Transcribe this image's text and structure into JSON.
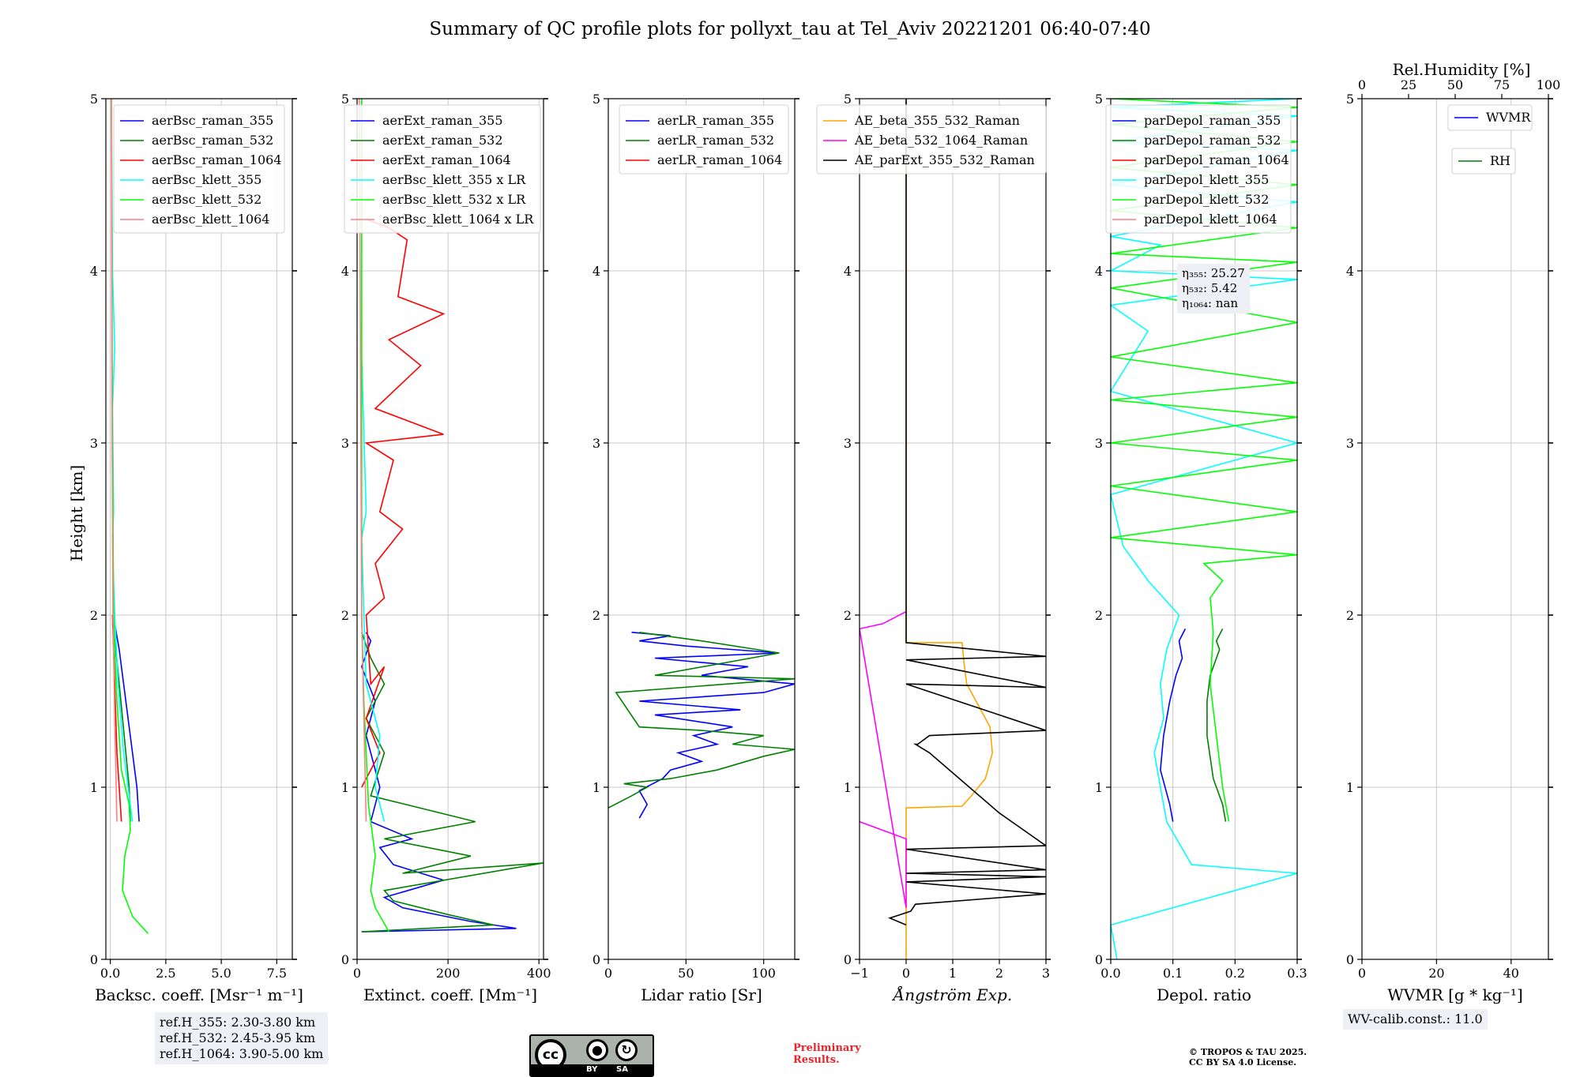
{
  "title": "Summary of QC profile plots for pollyxt_tau at Tel_Aviv 20221201 06:40-07:40",
  "ylabel": "Height [km]",
  "colors": {
    "blue": "#0000ff",
    "green": "#008000",
    "red": "#ff0000",
    "cyan": "#00ffff",
    "lime": "#00ff00",
    "pink": "#ff8080",
    "orange": "#ffa500",
    "magenta": "#ff00ff",
    "black": "#000000",
    "grid": "#c8c8c8"
  },
  "chart_data": [
    {
      "type": "line",
      "xlabel": "Backsc. coeff. [Msr⁻¹ m⁻¹]",
      "ylabel": "Height [km]",
      "xlim": [
        -0.2,
        8.2
      ],
      "ylim": [
        0,
        5
      ],
      "xticks": [
        0,
        2.5,
        5,
        7.5
      ],
      "xticklabels": [
        "0.0",
        "2.5",
        "5.0",
        "7.5"
      ],
      "yticks": [
        0,
        1,
        2,
        3,
        4,
        5
      ],
      "yticklabels": [
        "0",
        "1",
        "2",
        "3",
        "4",
        "5"
      ],
      "legend": [
        {
          "label": "aerBsc_raman_355",
          "color": "blue"
        },
        {
          "label": "aerBsc_raman_532",
          "color": "green"
        },
        {
          "label": "aerBsc_raman_1064",
          "color": "red"
        },
        {
          "label": "aerBsc_klett_355",
          "color": "cyan"
        },
        {
          "label": "aerBsc_klett_532",
          "color": "lime"
        },
        {
          "label": "aerBsc_klett_1064",
          "color": "pink"
        }
      ],
      "series": [
        {
          "name": "aerBsc_raman_355",
          "color": "blue",
          "x": [
            1.3,
            1.2,
            1.0,
            0.8,
            0.6,
            0.4,
            0.2
          ],
          "y": [
            0.8,
            1.0,
            1.2,
            1.4,
            1.6,
            1.8,
            1.95
          ]
        },
        {
          "name": "aerBsc_raman_532",
          "color": "green",
          "x": [
            0.9,
            0.85,
            0.7,
            0.55,
            0.4,
            0.25,
            0.1
          ],
          "y": [
            0.8,
            1.0,
            1.2,
            1.4,
            1.6,
            1.8,
            1.95
          ]
        },
        {
          "name": "aerBsc_raman_1064",
          "color": "red",
          "x": [
            0.5,
            0.4,
            0.3,
            0.25,
            0.2,
            0.15,
            0.1
          ],
          "y": [
            0.8,
            1.0,
            1.2,
            1.4,
            1.6,
            1.8,
            2.0
          ]
        },
        {
          "name": "aerBsc_klett_355",
          "color": "cyan",
          "x": [
            1.0,
            0.6,
            0.35,
            0.2,
            0.12,
            0.1,
            0.15,
            0.1,
            0.2,
            0.1,
            0.05
          ],
          "y": [
            0.8,
            1.2,
            1.6,
            2.0,
            2.3,
            2.45,
            2.6,
            3.2,
            3.55,
            4.0,
            5.0
          ]
        },
        {
          "name": "aerBsc_klett_532",
          "color": "lime",
          "x": [
            1.7,
            1.0,
            0.55,
            0.65,
            0.9,
            0.85,
            0.5,
            0.3,
            0.15,
            0.1,
            0.05
          ],
          "y": [
            0.15,
            0.25,
            0.4,
            0.6,
            0.75,
            0.9,
            1.1,
            1.5,
            2.0,
            3.0,
            5.0
          ]
        },
        {
          "name": "aerBsc_klett_1064",
          "color": "pink",
          "x": [
            0.3,
            0.2,
            0.12,
            0.08,
            0.05
          ],
          "y": [
            0.8,
            1.4,
            2.0,
            3.0,
            5.0
          ]
        }
      ],
      "annotation": [
        "ref.H_355: 2.30-3.80 km",
        "ref.H_532: 2.45-3.95 km",
        "ref.H_1064: 3.90-5.00 km"
      ]
    },
    {
      "type": "line",
      "xlabel": "Extinct. coeff. [Mm⁻¹]",
      "xlim": [
        0,
        410
      ],
      "ylim": [
        0,
        5
      ],
      "xticks": [
        0,
        200,
        400
      ],
      "xticklabels": [
        "0",
        "200",
        "400"
      ],
      "yticks": [
        0,
        1,
        2,
        3,
        4,
        5
      ],
      "yticklabels": [
        "0",
        "1",
        "2",
        "3",
        "4",
        "5"
      ],
      "legend": [
        {
          "label": "aerExt_raman_355",
          "color": "blue"
        },
        {
          "label": "aerExt_raman_532",
          "color": "green"
        },
        {
          "label": "aerExt_raman_1064",
          "color": "red"
        },
        {
          "label": "aerBsc_klett_355 x LR",
          "color": "cyan"
        },
        {
          "label": "aerBsc_klett_532 x LR",
          "color": "lime"
        },
        {
          "label": "aerBsc_klett_1064 x LR",
          "color": "pink"
        }
      ],
      "series": [
        {
          "name": "aerExt_raman_355",
          "color": "blue",
          "x": [
            10,
            350,
            250,
            100,
            60,
            190,
            80,
            50,
            120,
            30,
            50,
            20,
            40,
            10,
            30,
            20
          ],
          "y": [
            0.16,
            0.18,
            0.22,
            0.3,
            0.36,
            0.46,
            0.55,
            0.65,
            0.7,
            0.8,
            1.0,
            1.3,
            1.5,
            1.7,
            1.85,
            1.9
          ]
        },
        {
          "name": "aerExt_raman_532",
          "color": "green",
          "x": [
            10,
            300,
            200,
            80,
            60,
            410,
            100,
            250,
            60,
            260,
            30,
            60,
            20,
            60,
            30,
            10
          ],
          "y": [
            0.16,
            0.2,
            0.26,
            0.34,
            0.4,
            0.56,
            0.5,
            0.6,
            0.7,
            0.8,
            0.95,
            1.2,
            1.4,
            1.6,
            1.75,
            1.9
          ]
        },
        {
          "name": "aerExt_raman_1064",
          "color": "red",
          "x": [
            10,
            50,
            20,
            60,
            30,
            20,
            60,
            40,
            100,
            50,
            80,
            20,
            190,
            40,
            140,
            70,
            190,
            90,
            110,
            70,
            20
          ],
          "y": [
            1.0,
            1.2,
            1.4,
            1.7,
            1.6,
            2.0,
            2.1,
            2.3,
            2.5,
            2.6,
            2.9,
            3.0,
            3.05,
            3.2,
            3.45,
            3.6,
            3.75,
            3.85,
            4.18,
            4.25,
            4.3
          ]
        },
        {
          "name": "aerBsc_klett_355 x LR",
          "color": "cyan",
          "x": [
            60,
            40,
            50,
            20,
            15,
            10,
            20,
            10,
            10
          ],
          "y": [
            0.8,
            1.0,
            1.3,
            1.6,
            2.0,
            2.45,
            2.6,
            3.5,
            5.0
          ]
        },
        {
          "name": "aerBsc_klett_532 x LR",
          "color": "lime",
          "x": [
            70,
            40,
            30,
            40,
            25,
            15,
            10,
            10
          ],
          "y": [
            0.16,
            0.3,
            0.4,
            0.6,
            0.9,
            1.5,
            2.0,
            5.0
          ]
        },
        {
          "name": "aerBsc_klett_1064 x LR",
          "color": "pink",
          "x": [
            20,
            15,
            10,
            5
          ],
          "y": [
            0.8,
            1.4,
            2.0,
            5.0
          ]
        }
      ],
      "annotation": []
    },
    {
      "type": "line",
      "xlabel": "Lidar ratio [Sr]",
      "xlim": [
        0,
        120
      ],
      "ylim": [
        0,
        5
      ],
      "xticks": [
        0,
        50,
        100
      ],
      "xticklabels": [
        "0",
        "50",
        "100"
      ],
      "yticks": [
        0,
        1,
        2,
        3,
        4,
        5
      ],
      "yticklabels": [
        "0",
        "1",
        "2",
        "3",
        "4",
        "5"
      ],
      "legend": [
        {
          "label": "aerLR_raman_355",
          "color": "blue"
        },
        {
          "label": "aerLR_raman_532",
          "color": "green"
        },
        {
          "label": "aerLR_raman_1064",
          "color": "red"
        }
      ],
      "series": [
        {
          "name": "aerLR_raman_355",
          "color": "blue",
          "x": [
            20,
            25,
            20,
            35,
            40,
            60,
            45,
            70,
            55,
            80,
            30,
            85,
            20,
            100,
            120,
            60,
            90,
            30,
            110,
            50,
            20,
            40,
            15
          ],
          "y": [
            0.82,
            0.9,
            0.98,
            1.05,
            1.1,
            1.15,
            1.2,
            1.25,
            1.3,
            1.35,
            1.42,
            1.45,
            1.5,
            1.55,
            1.6,
            1.65,
            1.7,
            1.75,
            1.78,
            1.82,
            1.85,
            1.88,
            1.9
          ]
        },
        {
          "name": "aerLR_raman_532",
          "color": "green",
          "x": [
            0,
            15,
            25,
            10,
            40,
            70,
            100,
            120,
            80,
            100,
            60,
            20,
            5,
            120,
            30,
            110,
            60,
            20
          ],
          "y": [
            0.88,
            0.95,
            1.0,
            1.02,
            1.05,
            1.1,
            1.18,
            1.22,
            1.25,
            1.3,
            1.33,
            1.35,
            1.55,
            1.63,
            1.65,
            1.78,
            1.85,
            1.9
          ]
        }
      ],
      "annotation": []
    },
    {
      "type": "line",
      "xlabel": "Ångström Exp.",
      "xlim": [
        -1,
        3
      ],
      "ylim": [
        0,
        5
      ],
      "xticks": [
        -1,
        0,
        1,
        2,
        3
      ],
      "xticklabels": [
        "−1",
        "0",
        "1",
        "2",
        "3"
      ],
      "yticks": [
        0,
        1,
        2,
        3,
        4,
        5
      ],
      "yticklabels": [
        "0",
        "1",
        "2",
        "3",
        "4",
        "5"
      ],
      "legend": [
        {
          "label": "AE_beta_355_532_Raman",
          "color": "orange"
        },
        {
          "label": "AE_beta_532_1064_Raman",
          "color": "magenta"
        },
        {
          "label": "AE_parExt_355_532_Raman",
          "color": "black"
        }
      ],
      "series": [
        {
          "name": "AE_beta_355_532_Raman",
          "color": "orange",
          "x": [
            0,
            0,
            1.2,
            1.4,
            1.7,
            1.85,
            1.8,
            1.5,
            1.3,
            1.25,
            1.2,
            0,
            0
          ],
          "y": [
            0,
            0.88,
            0.89,
            0.95,
            1.05,
            1.2,
            1.35,
            1.5,
            1.6,
            1.7,
            1.84,
            1.84,
            5.0
          ]
        },
        {
          "name": "AE_beta_532_1064_Raman",
          "color": "magenta",
          "x": [
            -1,
            0,
            0,
            -1,
            -0.5,
            0
          ],
          "y": [
            0.8,
            0.7,
            0.3,
            1.92,
            1.95,
            2.02
          ]
        },
        {
          "name": "AE_parExt_355_532_Raman",
          "color": "black",
          "x": [
            0,
            -0.35,
            0.1,
            0.2,
            3.0,
            0,
            3.0,
            0,
            3.0,
            0,
            3.0,
            2.0,
            0.5,
            0.2,
            0.25,
            0.5,
            3.0,
            0,
            3.0,
            0,
            3.0,
            0,
            0
          ],
          "y": [
            0.2,
            0.24,
            0.28,
            0.32,
            0.38,
            0.45,
            0.48,
            0.5,
            0.52,
            0.64,
            0.66,
            0.85,
            1.2,
            1.25,
            1.25,
            1.3,
            1.33,
            1.6,
            1.58,
            1.74,
            1.76,
            1.84,
            5.0
          ]
        }
      ],
      "annotation": []
    },
    {
      "type": "line",
      "xlabel": "Depol. ratio",
      "xlim": [
        0,
        0.3
      ],
      "ylim": [
        0,
        5
      ],
      "xticks": [
        0,
        0.1,
        0.2,
        0.3
      ],
      "xticklabels": [
        "0.0",
        "0.1",
        "0.2",
        "0.3"
      ],
      "yticks": [
        0,
        1,
        2,
        3,
        4,
        5
      ],
      "yticklabels": [
        "0",
        "1",
        "2",
        "3",
        "4",
        "5"
      ],
      "legend": [
        {
          "label": "parDepol_raman_355",
          "color": "blue"
        },
        {
          "label": "parDepol_raman_532",
          "color": "green"
        },
        {
          "label": "parDepol_raman_1064",
          "color": "red"
        },
        {
          "label": "parDepol_klett_355",
          "color": "cyan"
        },
        {
          "label": "parDepol_klett_532",
          "color": "lime"
        },
        {
          "label": "parDepol_klett_1064",
          "color": "pink"
        }
      ],
      "series": [
        {
          "name": "parDepol_raman_355",
          "color": "blue",
          "x": [
            0.1,
            0.095,
            0.08,
            0.085,
            0.095,
            0.105,
            0.115,
            0.11,
            0.12
          ],
          "y": [
            0.8,
            0.9,
            1.1,
            1.3,
            1.5,
            1.65,
            1.75,
            1.85,
            1.92
          ]
        },
        {
          "name": "parDepol_raman_532",
          "color": "green",
          "x": [
            0.185,
            0.18,
            0.165,
            0.155,
            0.155,
            0.16,
            0.175,
            0.17,
            0.18
          ],
          "y": [
            0.8,
            0.9,
            1.05,
            1.3,
            1.5,
            1.65,
            1.8,
            1.85,
            1.92
          ]
        },
        {
          "name": "parDepol_klett_355",
          "color": "cyan",
          "x": [
            0.01,
            0.0,
            0.3,
            0.3,
            0.13,
            0.09,
            0.08,
            0.07,
            0.085,
            0.08,
            0.09,
            0.11,
            0.06,
            0.02,
            0.0,
            0.3,
            0.0,
            0.06,
            0.0,
            0.3,
            0.0,
            0.08,
            0.0,
            0.3,
            0.0,
            0.3,
            0.0,
            0.3,
            0.0,
            0.3
          ],
          "y": [
            0.0,
            0.2,
            0.5,
            0.5,
            0.55,
            0.8,
            1.0,
            1.2,
            1.4,
            1.6,
            1.8,
            2.0,
            2.2,
            2.4,
            2.7,
            3.0,
            3.3,
            3.65,
            3.8,
            3.95,
            4.0,
            4.15,
            4.2,
            4.4,
            4.5,
            4.7,
            4.75,
            4.9,
            4.95,
            5.0
          ]
        },
        {
          "name": "parDepol_klett_532",
          "color": "lime",
          "x": [
            0.19,
            0.18,
            0.17,
            0.16,
            0.165,
            0.16,
            0.18,
            0.15,
            0.3,
            0.0,
            0.3,
            0.0,
            0.3,
            0.0,
            0.3,
            0.0,
            0.3,
            0.0,
            0.3,
            0.0,
            0.3,
            0.0,
            0.3,
            0.0,
            0.3,
            0.0,
            0.3,
            0.0,
            0.3,
            0.0
          ],
          "y": [
            0.8,
            1.0,
            1.3,
            1.6,
            1.9,
            2.1,
            2.2,
            2.3,
            2.35,
            2.45,
            2.6,
            2.75,
            2.9,
            3.0,
            3.15,
            3.25,
            3.35,
            3.5,
            3.7,
            3.9,
            4.05,
            4.1,
            4.25,
            4.35,
            4.5,
            4.6,
            4.75,
            4.85,
            4.95,
            5.0
          ]
        }
      ],
      "annotation": []
    },
    {
      "type": "line",
      "xlabel": "WVMR [g * kg⁻¹]",
      "x2label": "Rel.Humidity [%]",
      "xlim": [
        0,
        50
      ],
      "ylim": [
        0,
        5
      ],
      "xticks": [
        0,
        20,
        40
      ],
      "xticklabels": [
        "0",
        "20",
        "40"
      ],
      "x2ticks": [
        0,
        25,
        50,
        75,
        100
      ],
      "x2ticklabels": [
        "0",
        "25",
        "50",
        "75",
        "100"
      ],
      "yticks": [
        0,
        1,
        2,
        3,
        4,
        5
      ],
      "yticklabels": [
        "0",
        "1",
        "2",
        "3",
        "4",
        "5"
      ],
      "legend": [
        {
          "label": "WVMR",
          "color": "blue"
        },
        {
          "label": "RH",
          "color": "green"
        }
      ],
      "series": [],
      "annotation": [
        "WV-calib.const.: 11.0"
      ]
    }
  ],
  "eta_box": {
    "eta355": "η₃₅₅: 25.27",
    "eta532": "η₅₃₂: 5.42",
    "eta1064": "η₁₀₆₄: nan"
  },
  "footer": {
    "preliminary_1": "Preliminary",
    "preliminary_2": "Results.",
    "copyright_1": "© TROPOS & TAU 2025.",
    "copyright_2": "CC BY SA 4.0 License.",
    "cc_logo": "cc",
    "cc_by": "BY",
    "cc_sa": "SA"
  }
}
